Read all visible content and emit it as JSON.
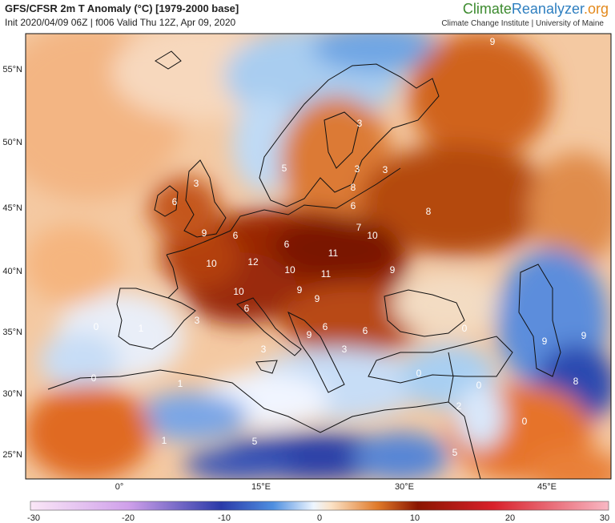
{
  "header": {
    "title": "GFS/CFSR 2m T Anomaly (°C) [1979-2000 base]",
    "subtitle": "Init 2020/04/09 06Z | f006 Valid Thu 12Z, Apr 09, 2020"
  },
  "brand": {
    "part1": "Climate",
    "part2": "Reanalyzer",
    "part3": ".org",
    "subtitle": "Climate Change Institute | University of Maine"
  },
  "colors": {
    "warm_strong": "#8b1a00",
    "warm_mid": "#d4601a",
    "warm_light": "#f0a060",
    "neutral": "#f4f8ff",
    "cool_light": "#a8cff2",
    "cool_mid": "#4f86d6",
    "cool_strong": "#1c3aa0",
    "coastline": "#111111"
  },
  "map_data": {
    "lat_ticks": [
      "55°N",
      "50°N",
      "45°N",
      "40°N",
      "35°N",
      "30°N",
      "25°N"
    ],
    "lon_ticks": [
      "0°",
      "15°E",
      "30°E",
      "45°E"
    ],
    "anomaly_labels": [
      "9",
      "3",
      "5",
      "6",
      "3",
      "8",
      "6",
      "3",
      "3",
      "8",
      "7",
      "9",
      "6",
      "10",
      "6",
      "10",
      "12",
      "10",
      "11",
      "11",
      "9",
      "10",
      "6",
      "9",
      "9",
      "9",
      "6",
      "6",
      "0",
      "3",
      "1",
      "3",
      "3",
      "0",
      "0",
      "1",
      "9",
      "9",
      "0",
      "8",
      "0",
      "2",
      "0",
      "1",
      "5",
      "5"
    ]
  },
  "colorbar": {
    "ticks": [
      "-30",
      "-20",
      "-10",
      "0",
      "10",
      "20",
      "30"
    ]
  }
}
